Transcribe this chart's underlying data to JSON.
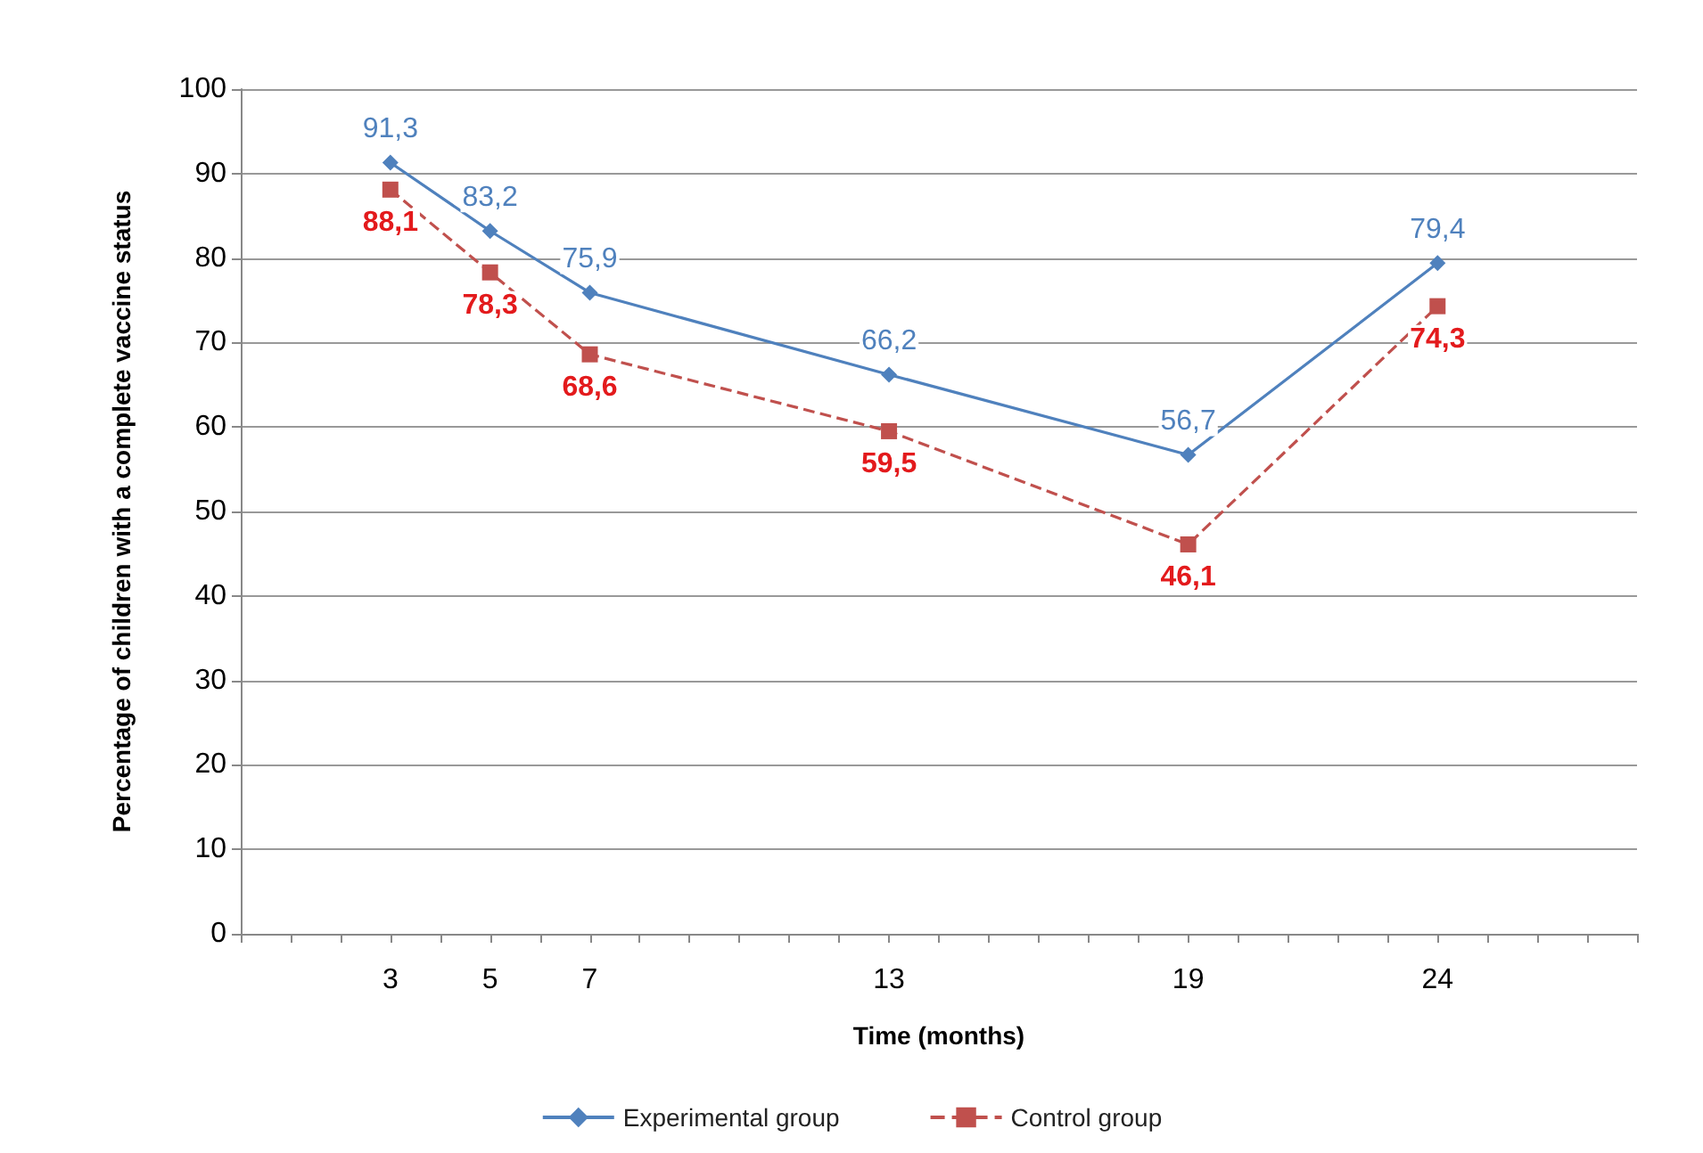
{
  "chart_data": {
    "type": "line",
    "xlabel": "Time (months)",
    "ylabel": "Percentage of children with a complete vaccine status",
    "x": [
      3,
      5,
      7,
      13,
      19,
      24
    ],
    "xlim": [
      0,
      28
    ],
    "xticks": [
      {
        "value": 0,
        "label": null
      },
      {
        "value": 1,
        "label": null
      },
      {
        "value": 2,
        "label": null
      },
      3,
      {
        "value": 4,
        "label": null
      },
      5,
      {
        "value": 6,
        "label": null
      },
      7,
      {
        "value": 8,
        "label": null
      },
      {
        "value": 9,
        "label": null
      },
      {
        "value": 10,
        "label": null
      },
      {
        "value": 11,
        "label": null
      },
      {
        "value": 12,
        "label": null
      },
      13,
      {
        "value": 14,
        "label": null
      },
      {
        "value": 15,
        "label": null
      },
      {
        "value": 16,
        "label": null
      },
      {
        "value": 17,
        "label": null
      },
      {
        "value": 18,
        "label": null
      },
      19,
      {
        "value": 20,
        "label": null
      },
      {
        "value": 21,
        "label": null
      },
      {
        "value": 22,
        "label": null
      },
      {
        "value": 23,
        "label": null
      },
      24,
      {
        "value": 25,
        "label": null
      },
      {
        "value": 26,
        "label": null
      },
      {
        "value": 27,
        "label": null
      },
      {
        "value": 28,
        "label": null
      }
    ],
    "ylim": [
      0,
      100
    ],
    "yticks": [
      0,
      10,
      20,
      30,
      40,
      50,
      60,
      70,
      80,
      90,
      100
    ],
    "series": [
      {
        "name": "Experimental group",
        "color": "#4f81bd",
        "marker": "diamond",
        "line_style": "solid",
        "values": [
          91.3,
          83.2,
          75.9,
          66.2,
          56.7,
          79.4
        ],
        "value_labels": [
          "91,3",
          "83,2",
          "75,9",
          "66,2",
          "56,7",
          "79,4"
        ]
      },
      {
        "name": "Control group",
        "color": "#c0504d",
        "marker": "square",
        "line_style": "dashed",
        "values": [
          88.1,
          78.3,
          68.6,
          59.5,
          46.1,
          74.3
        ],
        "value_labels": [
          "88,1",
          "78,3",
          "68,6",
          "59,5",
          "46,1",
          "74,3"
        ]
      }
    ],
    "grid": "y",
    "legend": "bottom"
  }
}
